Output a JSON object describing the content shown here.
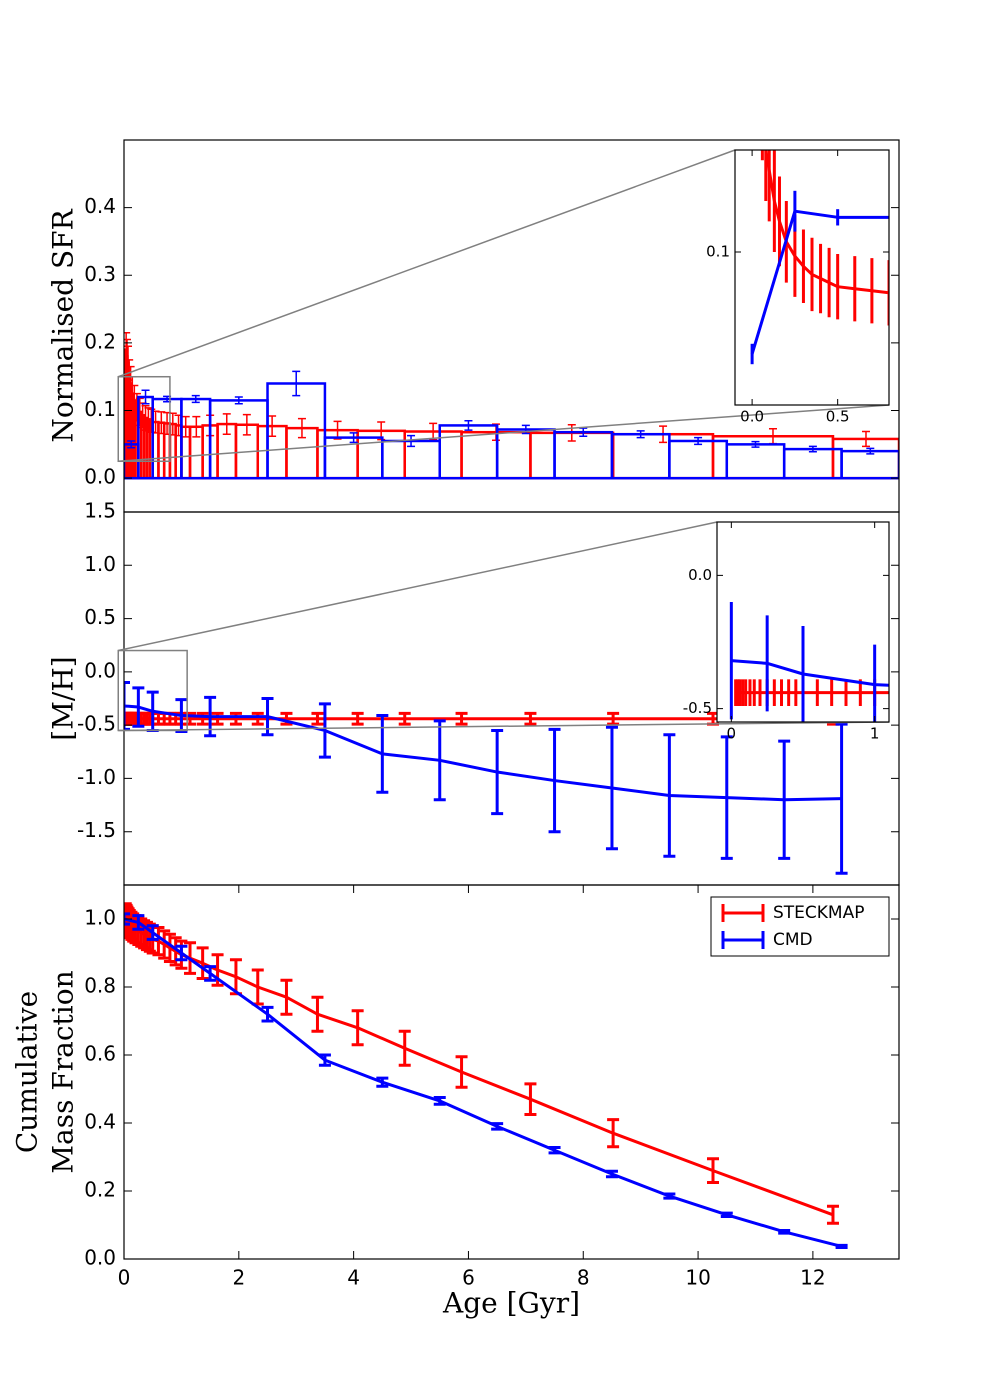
{
  "chart_data": [
    {
      "type": "histogram",
      "ylabel": [
        "Normalised SFR"
      ],
      "xlim": [
        0,
        13.5
      ],
      "ylim": [
        -0.05,
        0.5
      ],
      "yticks": [
        {
          "value": 0,
          "label": "0.0"
        },
        {
          "value": 0.1,
          "label": "0.1"
        },
        {
          "value": 0.2,
          "label": "0.2"
        },
        {
          "value": 0.3,
          "label": "0.3"
        },
        {
          "value": 0.4,
          "label": "0.4"
        }
      ],
      "series": [
        {
          "color": "#ff0000",
          "bins": [
            0.03,
            0.045,
            0.06,
            0.08,
            0.1,
            0.13,
            0.16,
            0.2,
            0.25,
            0.3,
            0.35,
            0.4,
            0.45,
            0.5,
            0.6,
            0.7,
            0.8,
            0.9,
            1.0,
            1.15,
            1.37,
            1.63,
            1.95,
            2.33,
            2.83,
            3.37,
            4.07,
            4.89,
            5.88,
            7.08,
            8.52,
            10.26,
            12.35,
            13.5
          ],
          "values": [
            0.19,
            0.18,
            0.17,
            0.15,
            0.14,
            0.125,
            0.115,
            0.105,
            0.098,
            0.093,
            0.089,
            0.087,
            0.085,
            0.083,
            0.082,
            0.081,
            0.08,
            0.078,
            0.076,
            0.076,
            0.078,
            0.08,
            0.079,
            0.077,
            0.074,
            0.071,
            0.07,
            0.069,
            0.068,
            0.067,
            0.065,
            0.062,
            0.058
          ],
          "errors": [
            0.025,
            0.025,
            0.025,
            0.025,
            0.025,
            0.025,
            0.022,
            0.02,
            0.02,
            0.018,
            0.018,
            0.017,
            0.017,
            0.016,
            0.016,
            0.016,
            0.016,
            0.015,
            0.015,
            0.015,
            0.015,
            0.015,
            0.015,
            0.015,
            0.014,
            0.013,
            0.013,
            0.012,
            0.012,
            0.012,
            0.012,
            0.011,
            0.011
          ]
        },
        {
          "color": "#0000ff",
          "bins": [
            0,
            0.25,
            0.5,
            1,
            1.5,
            2.5,
            3.5,
            4.5,
            5.5,
            6.5,
            7.5,
            8.5,
            9.5,
            10.5,
            11.5,
            12.5,
            13.5
          ],
          "values": [
            0.05,
            0.12,
            0.117,
            0.117,
            0.115,
            0.14,
            0.06,
            0.055,
            0.078,
            0.072,
            0.068,
            0.065,
            0.055,
            0.05,
            0.043,
            0.04
          ],
          "errors": [
            0.005,
            0.01,
            0.004,
            0.005,
            0.005,
            0.018,
            0.007,
            0.008,
            0.007,
            0.006,
            0.006,
            0.005,
            0.005,
            0.004,
            0.004,
            0.004
          ]
        }
      ],
      "inset": {
        "xlim": [
          -0.1,
          0.8
        ],
        "ylim": [
          0.025,
          0.15
        ],
        "xticks": [
          {
            "value": 0,
            "label": "0.0"
          },
          {
            "value": 0.5,
            "label": "0.5"
          }
        ],
        "yticks": [
          {
            "value": 0.1,
            "label": "0.1"
          }
        ]
      }
    },
    {
      "type": "line",
      "ylabel": [
        "[M/H]"
      ],
      "xlim": [
        0,
        13.5
      ],
      "ylim": [
        -2,
        1.5
      ],
      "yticks": [
        1.5,
        {
          "value": 1,
          "label": "1.0"
        },
        0.5,
        {
          "value": 0,
          "label": "0.0"
        },
        -0.5,
        {
          "value": -1,
          "label": "-1.0"
        },
        -1.5
      ],
      "series": [
        {
          "color": "#ff0000",
          "x": [
            0.03,
            0.045,
            0.06,
            0.08,
            0.1,
            0.13,
            0.16,
            0.2,
            0.25,
            0.3,
            0.35,
            0.4,
            0.45,
            0.5,
            0.6,
            0.7,
            0.8,
            0.9,
            1.0,
            1.15,
            1.37,
            1.63,
            1.95,
            2.33,
            2.83,
            3.37,
            4.07,
            4.89,
            5.88,
            7.08,
            8.52,
            10.26,
            12.35
          ],
          "values": [
            -0.44,
            -0.44,
            -0.44,
            -0.44,
            -0.44,
            -0.44,
            -0.44,
            -0.44,
            -0.44,
            -0.44,
            -0.44,
            -0.44,
            -0.44,
            -0.44,
            -0.44,
            -0.44,
            -0.44,
            -0.44,
            -0.44,
            -0.44,
            -0.44,
            -0.44,
            -0.44,
            -0.44,
            -0.44,
            -0.44,
            -0.44,
            -0.44,
            -0.44,
            -0.44,
            -0.44,
            -0.44,
            -0.44
          ],
          "errors": [
            0.05,
            0.05,
            0.05,
            0.05,
            0.05,
            0.05,
            0.05,
            0.05,
            0.05,
            0.05,
            0.05,
            0.05,
            0.05,
            0.05,
            0.05,
            0.05,
            0.05,
            0.05,
            0.05,
            0.05,
            0.05,
            0.05,
            0.05,
            0.05,
            0.05,
            0.05,
            0.05,
            0.05,
            0.05,
            0.05,
            0.05,
            0.05,
            0.05
          ]
        },
        {
          "color": "#0000ff",
          "x": [
            0,
            0.25,
            0.5,
            1,
            1.5,
            2.5,
            3.5,
            4.5,
            5.5,
            6.5,
            7.5,
            8.5,
            9.5,
            10.5,
            11.5,
            12.5
          ],
          "values": [
            -0.32,
            -0.33,
            -0.37,
            -0.41,
            -0.42,
            -0.42,
            -0.55,
            -0.77,
            -0.83,
            -0.94,
            -1.02,
            -1.09,
            -1.16,
            -1.18,
            -1.2,
            -1.19
          ],
          "errors": [
            0.22,
            0.18,
            0.18,
            0.15,
            0.18,
            0.17,
            0.25,
            0.36,
            0.37,
            0.39,
            0.48,
            0.57,
            0.57,
            0.57,
            0.55,
            0.7
          ]
        }
      ],
      "inset": {
        "xlim": [
          -0.1,
          1.1
        ],
        "ylim": [
          -0.55,
          0.2
        ],
        "xticks": [
          0,
          1
        ],
        "yticks": [
          {
            "value": 0,
            "label": "0.0"
          },
          -0.5
        ]
      }
    },
    {
      "type": "line",
      "ylabel": [
        "Cumulative",
        "Mass Fraction"
      ],
      "xlabel": "Age [Gyr]",
      "xlim": [
        0,
        13.5
      ],
      "ylim": [
        0,
        1.1
      ],
      "xticks": [
        0,
        2,
        4,
        6,
        8,
        10,
        12
      ],
      "yticks": [
        {
          "value": 0,
          "label": "0.0"
        },
        {
          "value": 0.2,
          "label": "0.2"
        },
        {
          "value": 0.4,
          "label": "0.4"
        },
        {
          "value": 0.6,
          "label": "0.6"
        },
        {
          "value": 0.8,
          "label": "0.8"
        },
        {
          "value": 1,
          "label": "1.0"
        }
      ],
      "legend": "upper right",
      "series": [
        {
          "name": "STECKMAP",
          "color": "#ff0000",
          "x": [
            0.03,
            0.045,
            0.06,
            0.08,
            0.1,
            0.13,
            0.16,
            0.2,
            0.25,
            0.3,
            0.35,
            0.4,
            0.45,
            0.5,
            0.6,
            0.7,
            0.8,
            0.9,
            1.0,
            1.15,
            1.37,
            1.63,
            1.95,
            2.33,
            2.83,
            3.37,
            4.07,
            4.89,
            5.88,
            7.08,
            8.52,
            10.26,
            12.35
          ],
          "values": [
            1.005,
            1.0,
            0.995,
            0.99,
            0.985,
            0.98,
            0.975,
            0.97,
            0.965,
            0.96,
            0.955,
            0.95,
            0.945,
            0.94,
            0.935,
            0.925,
            0.915,
            0.905,
            0.895,
            0.885,
            0.87,
            0.85,
            0.83,
            0.8,
            0.77,
            0.72,
            0.68,
            0.62,
            0.55,
            0.47,
            0.37,
            0.26,
            0.13
          ],
          "errors": [
            0.04,
            0.04,
            0.04,
            0.04,
            0.04,
            0.04,
            0.04,
            0.04,
            0.04,
            0.04,
            0.04,
            0.04,
            0.04,
            0.04,
            0.04,
            0.04,
            0.04,
            0.04,
            0.04,
            0.045,
            0.045,
            0.045,
            0.05,
            0.05,
            0.05,
            0.05,
            0.05,
            0.05,
            0.045,
            0.045,
            0.04,
            0.035,
            0.025
          ]
        },
        {
          "name": "CMD",
          "color": "#0000ff",
          "x": [
            0,
            0.25,
            0.5,
            1,
            1.5,
            2.5,
            3.5,
            4.5,
            5.5,
            6.5,
            7.5,
            8.5,
            9.5,
            10.5,
            11.5,
            12.5
          ],
          "values": [
            1.0,
            0.99,
            0.96,
            0.9,
            0.84,
            0.72,
            0.585,
            0.52,
            0.465,
            0.39,
            0.32,
            0.25,
            0.185,
            0.13,
            0.08,
            0.037
          ],
          "errors": [
            0.015,
            0.02,
            0.02,
            0.02,
            0.02,
            0.02,
            0.015,
            0.012,
            0.01,
            0.008,
            0.008,
            0.008,
            0.006,
            0.005,
            0.004,
            0.003
          ]
        }
      ]
    }
  ]
}
